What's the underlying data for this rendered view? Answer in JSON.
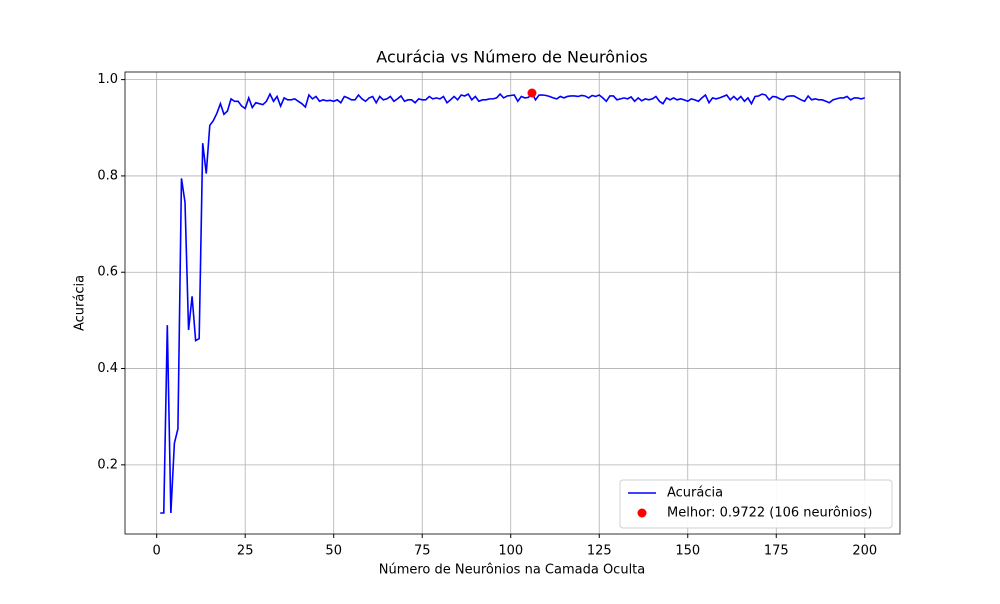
{
  "chart_data": {
    "type": "line",
    "title": "Acurácia vs Número de Neurônios",
    "xlabel": "Número de Neurônios na Camada Oculta",
    "ylabel": "Acurácia",
    "x": [
      1,
      2,
      3,
      4,
      5,
      6,
      7,
      8,
      9,
      10,
      11,
      12,
      13,
      14,
      15,
      16,
      17,
      18,
      19,
      20,
      21,
      22,
      23,
      24,
      25,
      26,
      27,
      28,
      29,
      30,
      31,
      32,
      33,
      34,
      35,
      36,
      37,
      38,
      39,
      40,
      41,
      42,
      43,
      44,
      45,
      46,
      47,
      48,
      49,
      50,
      51,
      52,
      53,
      54,
      55,
      56,
      57,
      58,
      59,
      60,
      61,
      62,
      63,
      64,
      65,
      66,
      67,
      68,
      69,
      70,
      71,
      72,
      73,
      74,
      75,
      76,
      77,
      78,
      79,
      80,
      81,
      82,
      83,
      84,
      85,
      86,
      87,
      88,
      89,
      90,
      91,
      92,
      93,
      94,
      95,
      96,
      97,
      98,
      99,
      100,
      101,
      102,
      103,
      104,
      105,
      106,
      107,
      108,
      109,
      110,
      111,
      112,
      113,
      114,
      115,
      116,
      117,
      118,
      119,
      120,
      121,
      122,
      123,
      124,
      125,
      126,
      127,
      128,
      129,
      130,
      131,
      132,
      133,
      134,
      135,
      136,
      137,
      138,
      139,
      140,
      141,
      142,
      143,
      144,
      145,
      146,
      147,
      148,
      149,
      150,
      151,
      152,
      153,
      154,
      155,
      156,
      157,
      158,
      159,
      160,
      161,
      162,
      163,
      164,
      165,
      166,
      167,
      168,
      169,
      170,
      171,
      172,
      173,
      174,
      175,
      176,
      177,
      178,
      179,
      180,
      181,
      182,
      183,
      184,
      185,
      186,
      187,
      188,
      189,
      190,
      191,
      192,
      193,
      194,
      195,
      196,
      197,
      198,
      199,
      200
    ],
    "series": [
      {
        "name": "Acurácia",
        "color": "#0000ff",
        "values": [
          0.1,
          0.1,
          0.49,
          0.1,
          0.245,
          0.275,
          0.795,
          0.745,
          0.48,
          0.55,
          0.458,
          0.462,
          0.868,
          0.805,
          0.905,
          0.915,
          0.93,
          0.95,
          0.928,
          0.935,
          0.96,
          0.955,
          0.955,
          0.945,
          0.94,
          0.962,
          0.942,
          0.952,
          0.95,
          0.948,
          0.955,
          0.97,
          0.955,
          0.965,
          0.945,
          0.962,
          0.958,
          0.958,
          0.96,
          0.955,
          0.95,
          0.943,
          0.968,
          0.96,
          0.965,
          0.955,
          0.958,
          0.956,
          0.957,
          0.955,
          0.958,
          0.952,
          0.965,
          0.962,
          0.958,
          0.958,
          0.968,
          0.96,
          0.955,
          0.962,
          0.965,
          0.952,
          0.965,
          0.958,
          0.96,
          0.965,
          0.955,
          0.96,
          0.966,
          0.955,
          0.958,
          0.958,
          0.952,
          0.96,
          0.958,
          0.958,
          0.965,
          0.96,
          0.962,
          0.96,
          0.965,
          0.952,
          0.958,
          0.965,
          0.958,
          0.968,
          0.966,
          0.97,
          0.958,
          0.965,
          0.955,
          0.958,
          0.958,
          0.96,
          0.96,
          0.962,
          0.97,
          0.962,
          0.966,
          0.967,
          0.968,
          0.955,
          0.965,
          0.962,
          0.963,
          0.9722,
          0.958,
          0.968,
          0.968,
          0.967,
          0.965,
          0.962,
          0.96,
          0.965,
          0.962,
          0.965,
          0.966,
          0.966,
          0.965,
          0.967,
          0.966,
          0.962,
          0.967,
          0.965,
          0.968,
          0.962,
          0.955,
          0.966,
          0.966,
          0.958,
          0.96,
          0.962,
          0.96,
          0.964,
          0.955,
          0.962,
          0.956,
          0.96,
          0.958,
          0.96,
          0.965,
          0.955,
          0.95,
          0.962,
          0.958,
          0.962,
          0.958,
          0.96,
          0.958,
          0.955,
          0.96,
          0.958,
          0.955,
          0.962,
          0.968,
          0.952,
          0.962,
          0.96,
          0.962,
          0.965,
          0.968,
          0.958,
          0.965,
          0.958,
          0.965,
          0.955,
          0.962,
          0.95,
          0.965,
          0.966,
          0.97,
          0.968,
          0.958,
          0.965,
          0.964,
          0.96,
          0.958,
          0.965,
          0.966,
          0.966,
          0.962,
          0.958,
          0.955,
          0.966,
          0.958,
          0.96,
          0.958,
          0.958,
          0.955,
          0.952,
          0.958,
          0.96,
          0.962,
          0.962,
          0.965,
          0.958,
          0.962,
          0.962,
          0.96,
          0.962
        ]
      }
    ],
    "highlight": {
      "name": "Melhor: 0.9722 (106 neurônios)",
      "color": "#ff0000",
      "x": 106,
      "y": 0.9722
    },
    "xlim": [
      -8.95,
      209.95
    ],
    "ylim": [
      0.0564,
      1.0158
    ],
    "xticks": [
      0,
      25,
      50,
      75,
      100,
      125,
      150,
      175,
      200
    ],
    "yticks": [
      0.2,
      0.4,
      0.6,
      0.8,
      {
        "value": 1,
        "label": "1.0"
      }
    ],
    "grid": true,
    "legend": "lower right"
  }
}
